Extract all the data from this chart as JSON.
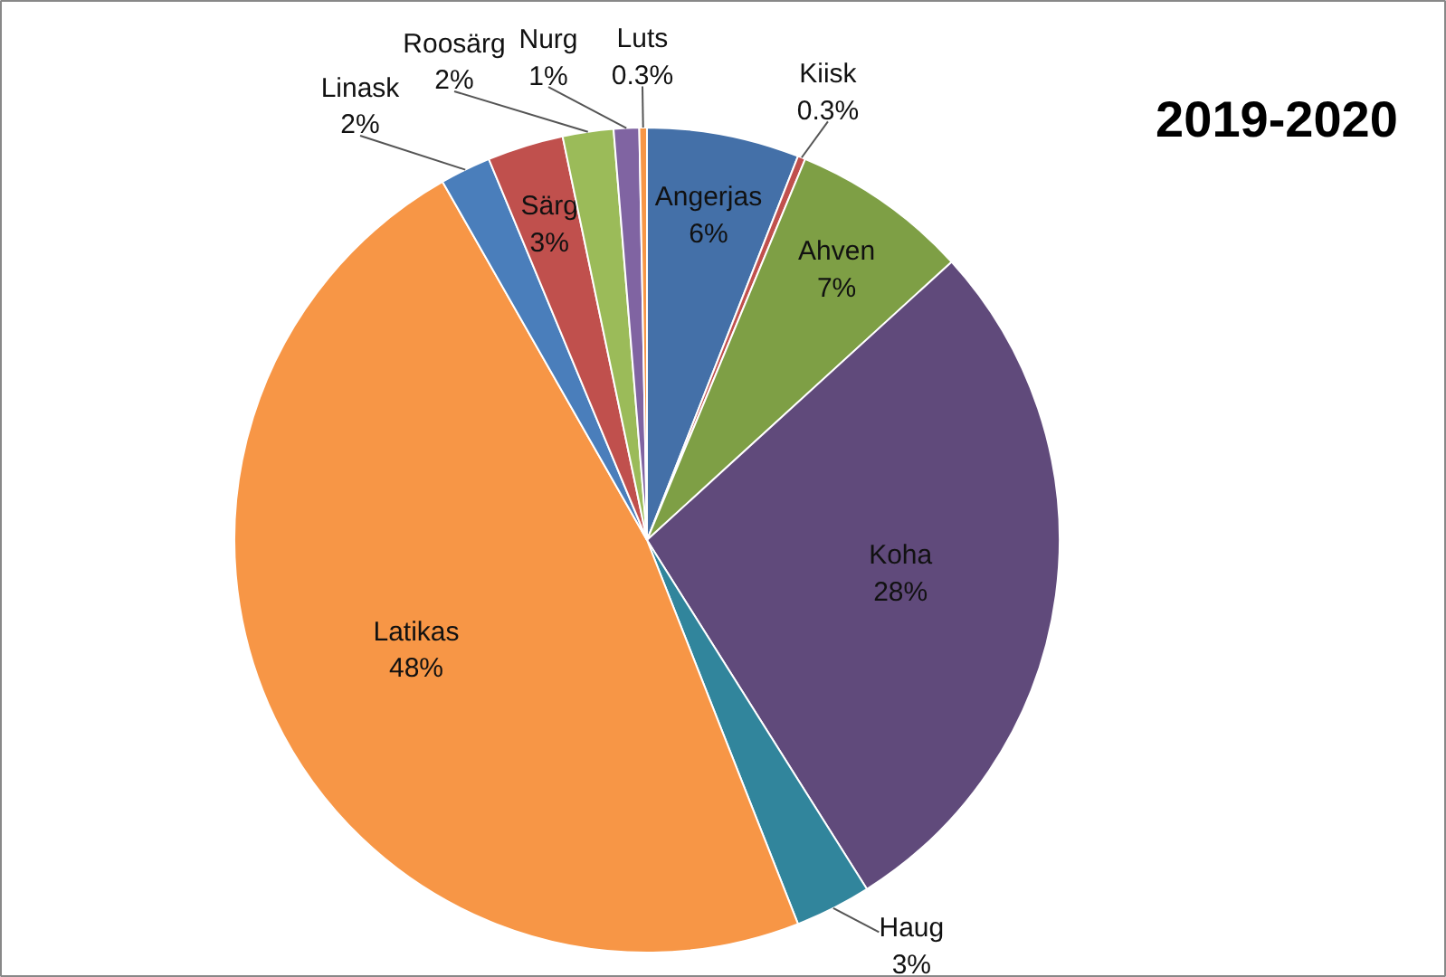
{
  "chart_data": {
    "type": "pie",
    "title": "2019-2020",
    "categories": [
      "Angerjas",
      "Kiisk",
      "Ahven",
      "Koha",
      "Haug",
      "Latikas",
      "Linask",
      "Särg",
      "Roosärg",
      "Nurg",
      "Luts"
    ],
    "values": [
      6,
      0.3,
      7,
      28,
      3,
      48,
      2,
      3,
      2,
      1,
      0.3
    ],
    "value_labels": [
      "6%",
      "0.3%",
      "7%",
      "28%",
      "3%",
      "48%",
      "2%",
      "3%",
      "2%",
      "1%",
      "0.3%"
    ],
    "colors": [
      "#4470a8",
      "#c0504d",
      "#7e9f45",
      "#604a7b",
      "#31859c",
      "#f79646",
      "#4a7ebb",
      "#c0504d",
      "#9bbb59",
      "#8064a2",
      "#f79646"
    ]
  }
}
